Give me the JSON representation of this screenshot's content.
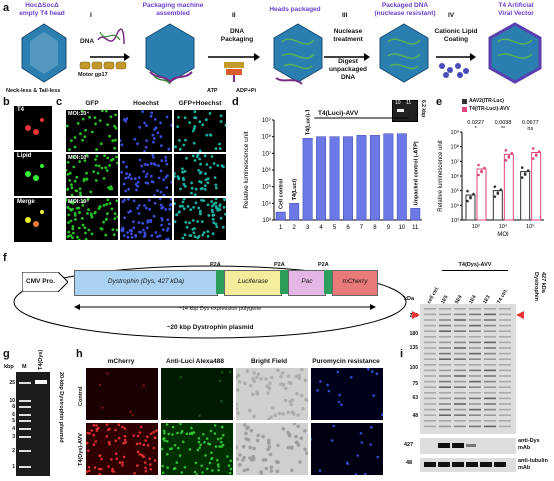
{
  "panel_a": {
    "letter": "a",
    "head_label": "HocΔSocΔ\nempty T4 head",
    "step_I": "I",
    "dna": "DNA",
    "motor": "Motor gp17",
    "neck": "Neck-less & Tail-less",
    "pack_machine": "Packaging machine\nassembled",
    "step_II": "II",
    "dna_packaging": "DNA\nPackaging",
    "atp": "ATP",
    "adp": "ADP+Pi",
    "heads_packaged": "Heads packaged",
    "step_III": "III",
    "nuclease": "Nuclease\ntreatment",
    "digest": "Digest\nunpackaged\nDNA",
    "packaged_dna": "Packaged DNA\n(nuclease resistant)",
    "step_IV": "IV",
    "cationic": "Cationic Lipid\nCoating",
    "artificial": "T4 Artificial\nViral Vector"
  },
  "panel_b": {
    "letter": "b",
    "rows": [
      "T4",
      "Lipid",
      "Merge"
    ]
  },
  "panel_c": {
    "letter": "c",
    "cols": [
      "GFP",
      "Hoechst",
      "GFP+Hoechst"
    ],
    "rows": [
      "MOI:10⁴",
      "MOI:10⁵",
      "MOI:10⁶"
    ]
  },
  "panel_d": {
    "letter": "d",
    "title": "T4(Luci)-AVV",
    "ylabel": "Relative luminescence unit",
    "gel_lanes": [
      "10",
      "11"
    ],
    "gel_label": "6.2 kbp",
    "bar_labels": [
      "Cell control",
      "T4(Luci)",
      "T4(Luci)-TAT",
      "Unpacked control (-ATP)"
    ]
  },
  "panel_e": {
    "letter": "e",
    "legend": [
      "AAV2(ITR-Luc)",
      "T4(ITR-Luci)-AVV"
    ],
    "ylabel": "Relative luminescence unit",
    "xlabel": "MOI",
    "pvals": [
      "0.0227",
      "0.0038",
      "0.0677"
    ],
    "sig": [
      "*",
      "**",
      "ns"
    ]
  },
  "panel_f": {
    "letter": "f",
    "cmv": "CMV Pro.",
    "dys": "Dystrophin (Dys, 427 kDa)",
    "p2a": [
      "P2A",
      "P2A",
      "P2A"
    ],
    "luc": "Luciferase",
    "pac": "Pac",
    "mcherry": "mCherry",
    "poly": "~14 kbp Dys expression polygene",
    "plasmid": "~20 kbp Dystrophin plasmid"
  },
  "panel_g": {
    "letter": "g",
    "kbp": "kbp",
    "m": "M",
    "lane": "T4(Dys)",
    "ladder": [
      "25",
      "10",
      "8",
      "6",
      "5",
      "4",
      "3",
      "2",
      "1"
    ],
    "side": "20-kbp Dystrophin plasmid"
  },
  "panel_h": {
    "letter": "h",
    "cols": [
      "mCherry",
      "Anti-Luci Alexa488",
      "Bright Field",
      "Puromycin resistance"
    ],
    "rows": [
      "Control",
      "T4(Dys)-AVV"
    ]
  },
  "panel_i": {
    "letter": "i",
    "header": "T4(Dys)-AVV",
    "lanes": [
      "cell ctrl.",
      "1E5",
      "5E4",
      "1E4",
      "1E3",
      "T4 ctrl."
    ],
    "kda": "kDa",
    "markers": [
      "245",
      "180",
      "135",
      "100",
      "75",
      "63",
      "48"
    ],
    "dys_band": "427 kDa\nDystrophin",
    "row2_marker": "427",
    "row2_label": "anti-Dys\nmAb",
    "row3_marker": "48",
    "row3_label": "anti-tubulin\nmAb"
  },
  "chart_data": [
    {
      "type": "bar",
      "panel": "d",
      "categories": [
        "1",
        "2",
        "3",
        "4",
        "5",
        "6",
        "7",
        "8",
        "9",
        "10",
        "11"
      ],
      "values": [
        3000,
        10000,
        80000000,
        100000000,
        100000000,
        100000000,
        120000000,
        120000000,
        150000000,
        150000000,
        5000
      ],
      "ylim": [
        1000,
        1000000000
      ],
      "yscale": "log",
      "yticks": [
        "10³",
        "10⁴",
        "10⁵",
        "10⁶",
        "10⁷",
        "10⁸",
        "10⁹"
      ],
      "color": "#6b78e6"
    },
    {
      "type": "bar",
      "panel": "e",
      "categories": [
        "10³",
        "10⁴",
        "10⁵"
      ],
      "series": [
        {
          "name": "AAV2(ITR-Luc)",
          "values": [
            50000,
            100000,
            2000000
          ],
          "color": "#333333"
        },
        {
          "name": "T4(ITR-Luci)-AVV",
          "values": [
            3000000,
            30000000,
            40000000
          ],
          "color": "#e0457b"
        }
      ],
      "ylim": [
        1000,
        1000000000
      ],
      "yscale": "log",
      "yticks": [
        "10³",
        "10⁴",
        "10⁵",
        "10⁶",
        "10⁷",
        "10⁸",
        "10⁹"
      ]
    }
  ]
}
